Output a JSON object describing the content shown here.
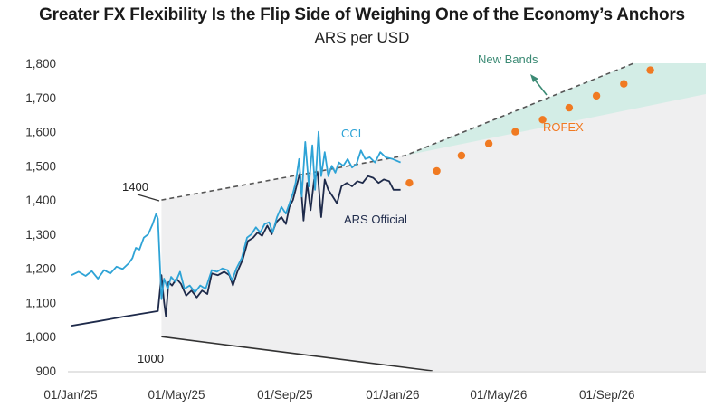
{
  "header": {
    "title": "Greater FX Flexibility Is the Flip Side of Weighing One of the Economy’s Anchors",
    "subtitle": "ARS per USD"
  },
  "chart_data": {
    "type": "line",
    "title": "Greater FX Flexibility Is the Flip Side of Weighing One of the Economy’s Anchors",
    "subtitle": "ARS per USD",
    "xlabel": "",
    "ylabel": "ARS per USD",
    "ylim": [
      900,
      1800
    ],
    "xlim": [
      "2025-01-01",
      "2026-12-31"
    ],
    "grid": false,
    "y_ticks": [
      {
        "value": 900,
        "label": "900"
      },
      {
        "value": 1000,
        "label": "1,000"
      },
      {
        "value": 1100,
        "label": "1,100"
      },
      {
        "value": 1200,
        "label": "1,200"
      },
      {
        "value": 1300,
        "label": "1,300"
      },
      {
        "value": 1400,
        "label": "1,400"
      },
      {
        "value": 1500,
        "label": "1,500"
      },
      {
        "value": 1600,
        "label": "1,600"
      },
      {
        "value": 1700,
        "label": "1,700"
      },
      {
        "value": 1800,
        "label": "1,800"
      }
    ],
    "x_ticks": [
      {
        "value": "2025-01-01",
        "label": "01/Jan/25"
      },
      {
        "value": "2025-05-01",
        "label": "01/May/25"
      },
      {
        "value": "2025-09-01",
        "label": "01/Sep/25"
      },
      {
        "value": "2026-01-01",
        "label": "01/Jan/26"
      },
      {
        "value": "2026-05-01",
        "label": "01/May/26"
      },
      {
        "value": "2026-09-01",
        "label": "01/Sep/26"
      }
    ],
    "colors": {
      "ccl": "#2ea3d6",
      "official": "#1e2a4a",
      "rofex": "#f07a22",
      "band_fill": "#efeff0",
      "new_band_fill": "#d3ede6",
      "new_bands_label": "#3b8a74",
      "band_line": "#555555"
    },
    "series": [
      {
        "name": "CCL",
        "label": "CCL",
        "points": [
          [
            "2025-01-02",
            1180
          ],
          [
            "2025-01-10",
            1190
          ],
          [
            "2025-01-18",
            1178
          ],
          [
            "2025-01-25",
            1192
          ],
          [
            "2025-02-01",
            1170
          ],
          [
            "2025-02-08",
            1195
          ],
          [
            "2025-02-15",
            1185
          ],
          [
            "2025-02-22",
            1205
          ],
          [
            "2025-03-01",
            1198
          ],
          [
            "2025-03-08",
            1215
          ],
          [
            "2025-03-12",
            1230
          ],
          [
            "2025-03-16",
            1260
          ],
          [
            "2025-03-20",
            1255
          ],
          [
            "2025-03-25",
            1290
          ],
          [
            "2025-03-30",
            1300
          ],
          [
            "2025-04-04",
            1330
          ],
          [
            "2025-04-08",
            1360
          ],
          [
            "2025-04-10",
            1345
          ],
          [
            "2025-04-14",
            1110
          ],
          [
            "2025-04-17",
            1170
          ],
          [
            "2025-04-21",
            1140
          ],
          [
            "2025-04-25",
            1175
          ],
          [
            "2025-04-30",
            1160
          ],
          [
            "2025-05-05",
            1190
          ],
          [
            "2025-05-10",
            1140
          ],
          [
            "2025-05-16",
            1150
          ],
          [
            "2025-05-22",
            1130
          ],
          [
            "2025-05-28",
            1150
          ],
          [
            "2025-06-03",
            1140
          ],
          [
            "2025-06-10",
            1195
          ],
          [
            "2025-06-16",
            1190
          ],
          [
            "2025-06-22",
            1200
          ],
          [
            "2025-06-28",
            1195
          ],
          [
            "2025-07-03",
            1165
          ],
          [
            "2025-07-08",
            1200
          ],
          [
            "2025-07-14",
            1230
          ],
          [
            "2025-07-20",
            1290
          ],
          [
            "2025-07-25",
            1300
          ],
          [
            "2025-07-30",
            1320
          ],
          [
            "2025-08-04",
            1305
          ],
          [
            "2025-08-09",
            1330
          ],
          [
            "2025-08-14",
            1335
          ],
          [
            "2025-08-18",
            1305
          ],
          [
            "2025-08-23",
            1350
          ],
          [
            "2025-08-28",
            1380
          ],
          [
            "2025-09-02",
            1360
          ],
          [
            "2025-09-06",
            1390
          ],
          [
            "2025-09-10",
            1420
          ],
          [
            "2025-09-13",
            1450
          ],
          [
            "2025-09-17",
            1520
          ],
          [
            "2025-09-20",
            1410
          ],
          [
            "2025-09-24",
            1570
          ],
          [
            "2025-09-28",
            1440
          ],
          [
            "2025-10-02",
            1560
          ],
          [
            "2025-10-05",
            1430
          ],
          [
            "2025-10-09",
            1600
          ],
          [
            "2025-10-12",
            1470
          ],
          [
            "2025-10-16",
            1540
          ],
          [
            "2025-10-20",
            1470
          ],
          [
            "2025-10-24",
            1500
          ],
          [
            "2025-10-28",
            1480
          ],
          [
            "2025-11-01",
            1510
          ],
          [
            "2025-11-06",
            1500
          ],
          [
            "2025-11-11",
            1520
          ],
          [
            "2025-11-16",
            1495
          ],
          [
            "2025-11-21",
            1505
          ],
          [
            "2025-11-26",
            1545
          ],
          [
            "2025-12-01",
            1520
          ],
          [
            "2025-12-06",
            1525
          ],
          [
            "2025-12-12",
            1510
          ],
          [
            "2025-12-18",
            1540
          ],
          [
            "2025-12-24",
            1525
          ],
          [
            "2026-01-01",
            1520
          ],
          [
            "2026-01-10",
            1510
          ]
        ]
      },
      {
        "name": "ARS Official",
        "label": "ARS Official",
        "points": [
          [
            "2025-01-02",
            1032
          ],
          [
            "2025-02-01",
            1045
          ],
          [
            "2025-03-01",
            1058
          ],
          [
            "2025-04-10",
            1075
          ],
          [
            "2025-04-14",
            1180
          ],
          [
            "2025-04-17",
            1100
          ],
          [
            "2025-04-19",
            1060
          ],
          [
            "2025-04-22",
            1160
          ],
          [
            "2025-04-26",
            1150
          ],
          [
            "2025-05-01",
            1170
          ],
          [
            "2025-05-06",
            1155
          ],
          [
            "2025-05-12",
            1120
          ],
          [
            "2025-05-18",
            1135
          ],
          [
            "2025-05-24",
            1115
          ],
          [
            "2025-05-30",
            1135
          ],
          [
            "2025-06-05",
            1125
          ],
          [
            "2025-06-10",
            1185
          ],
          [
            "2025-06-17",
            1180
          ],
          [
            "2025-06-24",
            1190
          ],
          [
            "2025-06-30",
            1180
          ],
          [
            "2025-07-04",
            1150
          ],
          [
            "2025-07-09",
            1190
          ],
          [
            "2025-07-15",
            1225
          ],
          [
            "2025-07-21",
            1280
          ],
          [
            "2025-07-27",
            1290
          ],
          [
            "2025-08-01",
            1305
          ],
          [
            "2025-08-06",
            1295
          ],
          [
            "2025-08-12",
            1325
          ],
          [
            "2025-08-17",
            1300
          ],
          [
            "2025-08-22",
            1335
          ],
          [
            "2025-08-28",
            1350
          ],
          [
            "2025-09-02",
            1330
          ],
          [
            "2025-09-06",
            1380
          ],
          [
            "2025-09-10",
            1400
          ],
          [
            "2025-09-14",
            1440
          ],
          [
            "2025-09-18",
            1480
          ],
          [
            "2025-09-22",
            1340
          ],
          [
            "2025-09-26",
            1450
          ],
          [
            "2025-09-30",
            1370
          ],
          [
            "2025-10-04",
            1460
          ],
          [
            "2025-10-08",
            1480
          ],
          [
            "2025-10-12",
            1350
          ],
          [
            "2025-10-16",
            1460
          ],
          [
            "2025-10-20",
            1430
          ],
          [
            "2025-10-25",
            1410
          ],
          [
            "2025-10-30",
            1390
          ],
          [
            "2025-11-04",
            1440
          ],
          [
            "2025-11-10",
            1450
          ],
          [
            "2025-11-16",
            1440
          ],
          [
            "2025-11-22",
            1455
          ],
          [
            "2025-11-28",
            1450
          ],
          [
            "2025-12-04",
            1470
          ],
          [
            "2025-12-10",
            1465
          ],
          [
            "2025-12-16",
            1450
          ],
          [
            "2025-12-22",
            1460
          ],
          [
            "2025-12-28",
            1455
          ],
          [
            "2026-01-02",
            1430
          ],
          [
            "2026-01-10",
            1430
          ]
        ]
      },
      {
        "name": "ROFEX",
        "label": "ROFEX",
        "kind": "scatter",
        "points": [
          [
            "2026-01-20",
            1450
          ],
          [
            "2026-02-20",
            1485
          ],
          [
            "2026-03-20",
            1530
          ],
          [
            "2026-04-20",
            1565
          ],
          [
            "2026-05-20",
            1600
          ],
          [
            "2026-06-20",
            1635
          ],
          [
            "2026-07-20",
            1670
          ],
          [
            "2026-08-20",
            1705
          ],
          [
            "2026-09-20",
            1740
          ],
          [
            "2026-10-20",
            1780
          ]
        ]
      }
    ],
    "bands": {
      "old_upper": {
        "label": "1400",
        "points": [
          [
            "2025-04-14",
            1400
          ],
          [
            "2026-01-15",
            1530
          ],
          [
            "2026-10-01",
            1800
          ],
          [
            "2026-12-31",
            1800
          ]
        ]
      },
      "old_lower": {
        "label": "1000",
        "points": [
          [
            "2025-04-14",
            1000
          ],
          [
            "2026-02-15",
            900
          ]
        ]
      },
      "new_bands": {
        "label": "New Bands",
        "upper": [
          [
            "2026-01-15",
            1530
          ],
          [
            "2026-10-01",
            1800
          ],
          [
            "2026-12-31",
            1800
          ]
        ],
        "lower": [
          [
            "2026-01-15",
            1530
          ],
          [
            "2026-12-31",
            1710
          ]
        ]
      }
    },
    "annotations": [
      {
        "text": "CCL",
        "series": "CCL"
      },
      {
        "text": "ARS Official",
        "series": "ARS Official"
      },
      {
        "text": "ROFEX",
        "series": "ROFEX"
      },
      {
        "text": "New Bands",
        "arrow": true
      },
      {
        "text": "1400",
        "leader": true
      },
      {
        "text": "1000",
        "leader": false
      }
    ],
    "legend": "none"
  }
}
